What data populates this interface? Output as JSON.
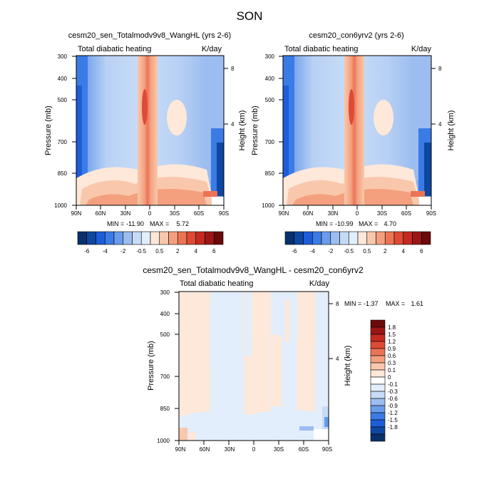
{
  "page_title": "SON",
  "colors": {
    "panel_palette": [
      "#08306b",
      "#0d47a1",
      "#1e5dd8",
      "#3b7be6",
      "#6a9ceb",
      "#9cbdf0",
      "#c7dbf6",
      "#e2eefb",
      "#fde8da",
      "#f9c8ac",
      "#f4a07e",
      "#ec7356",
      "#de4a35",
      "#c42a20",
      "#9c1616",
      "#6b0a0a"
    ],
    "diff_palette": [
      "#08306b",
      "#0d47a1",
      "#1e5dd8",
      "#3b7be6",
      "#6a9ceb",
      "#9cbdf0",
      "#c7dbf6",
      "#e2eefb",
      "#ffffff",
      "#fde8da",
      "#f9c8ac",
      "#f4a07e",
      "#ec7356",
      "#de4a35",
      "#c42a20",
      "#9c1616",
      "#6b0a0a"
    ]
  },
  "chart_data": [
    {
      "type": "heatmap",
      "title": "cesm20_sen_Totalmodv9v8_WangHL (yrs 2-6)",
      "left_string": "Total diabatic heating",
      "right_string": "K/day",
      "ylabel": "Pressure (mb)",
      "ylabel_right": "Height (km)",
      "x_ticks": [
        "90N",
        "60N",
        "30N",
        "0",
        "30S",
        "60S",
        "90S"
      ],
      "y_ticks": [
        "300",
        "400",
        "500",
        "700",
        "850",
        "1000"
      ],
      "y_right_ticks": [
        "8",
        "4"
      ],
      "stats": {
        "min_label": "MIN =",
        "min": "-11.90",
        "max_label": "MAX =",
        "max": "5.72"
      },
      "colorbar": {
        "orientation": "horizontal",
        "labels": [
          "-6",
          "-4",
          "-2",
          "-0.5",
          "0.5",
          "2",
          "4",
          "6"
        ]
      }
    },
    {
      "type": "heatmap",
      "title": "cesm20_con6yrv2 (yrs 2-6)",
      "left_string": "Total diabatic heating",
      "right_string": "K/day",
      "ylabel": "Pressure (mb)",
      "ylabel_right": "Height (km)",
      "x_ticks": [
        "90N",
        "60N",
        "30N",
        "0",
        "30S",
        "60S",
        "90S"
      ],
      "y_ticks": [
        "300",
        "400",
        "500",
        "700",
        "850",
        "1000"
      ],
      "y_right_ticks": [
        "8",
        "4"
      ],
      "stats": {
        "min_label": "MIN =",
        "min": "-10.99",
        "max_label": "MAX =",
        "max": "4.70"
      },
      "colorbar": {
        "orientation": "horizontal",
        "labels": [
          "-6",
          "-4",
          "-2",
          "-0.5",
          "0.5",
          "2",
          "4",
          "6"
        ]
      }
    },
    {
      "type": "heatmap",
      "title": "cesm20_sen_Totalmodv9v8_WangHL - cesm20_con6yrv2",
      "left_string": "Total diabatic heating",
      "right_string": "K/day",
      "ylabel": "Pressure (mb)",
      "ylabel_right": "Height (km)",
      "x_ticks": [
        "90N",
        "60N",
        "30N",
        "0",
        "30S",
        "60S",
        "90S"
      ],
      "y_ticks": [
        "300",
        "400",
        "500",
        "700",
        "850",
        "1000"
      ],
      "y_right_ticks": [
        "8",
        "4"
      ],
      "stats": {
        "min_label": "MIN =",
        "min": "-1.37",
        "max_label": "MAX =",
        "max": "1.61"
      },
      "colorbar": {
        "orientation": "vertical",
        "labels": [
          "1.8",
          "1.5",
          "1.2",
          "0.9",
          "0.6",
          "0.3",
          "0.1",
          "0",
          "-0.1",
          "-0.3",
          "-0.6",
          "-0.9",
          "-1.2",
          "-1.5",
          "-1.8"
        ]
      }
    }
  ]
}
